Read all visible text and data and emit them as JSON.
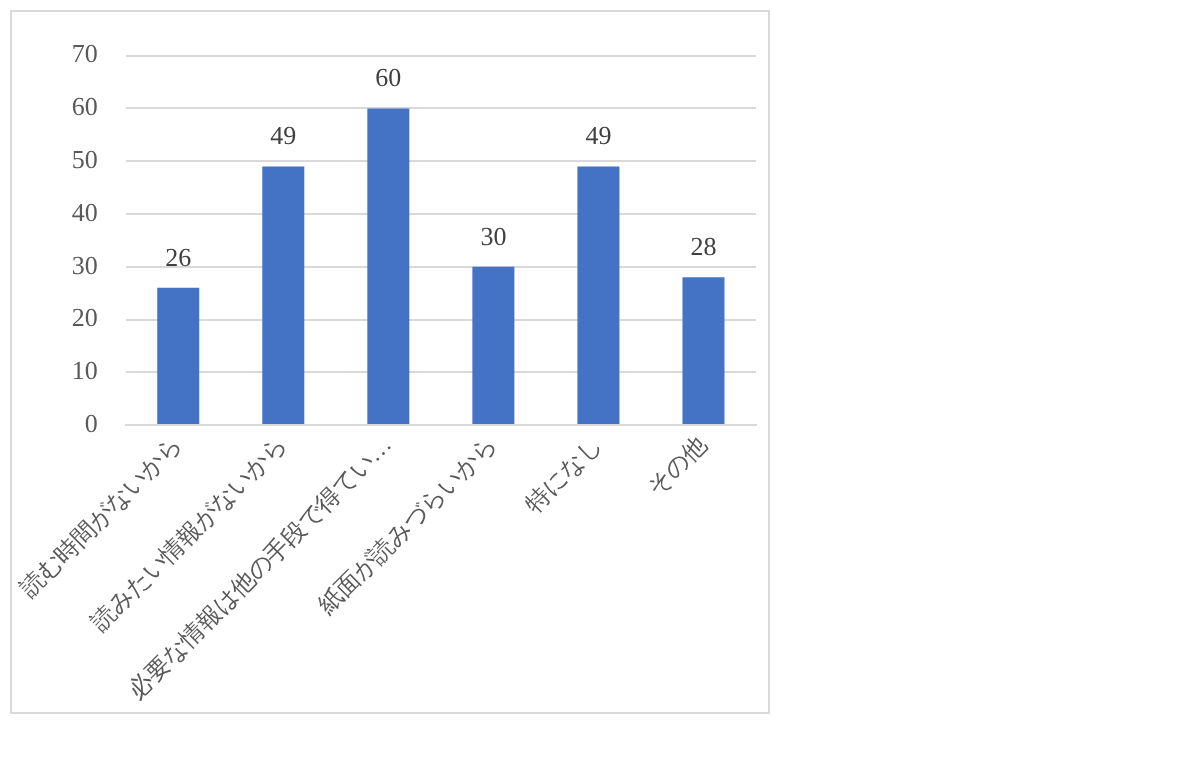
{
  "chart_data": {
    "type": "bar",
    "categories": [
      "読む時間がないから",
      "読みたい情報がないから",
      "必要な情報は他の手段で得てい…",
      "紙面が読みづらいから",
      "特になし",
      "その他"
    ],
    "values": [
      26,
      49,
      60,
      30,
      49,
      28
    ],
    "color": "#4472c4",
    "ylim": [
      0,
      70
    ],
    "yticks": [
      0,
      10,
      20,
      30,
      40,
      50,
      60,
      70
    ],
    "grid": "y",
    "legend": false,
    "data_labels": true
  }
}
